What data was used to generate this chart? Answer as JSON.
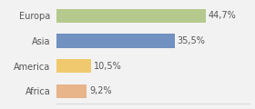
{
  "categories": [
    "Europa",
    "Asia",
    "America",
    "Africa"
  ],
  "values": [
    44.7,
    35.5,
    10.5,
    9.2
  ],
  "labels": [
    "44,7%",
    "35,5%",
    "10,5%",
    "9,2%"
  ],
  "bar_colors": [
    "#b5c98e",
    "#7191c0",
    "#f0c96e",
    "#e8b48a"
  ],
  "background_color": "#f2f2f2",
  "xlim": [
    0,
    58
  ],
  "label_fontsize": 7,
  "category_fontsize": 7,
  "bar_height": 0.55
}
